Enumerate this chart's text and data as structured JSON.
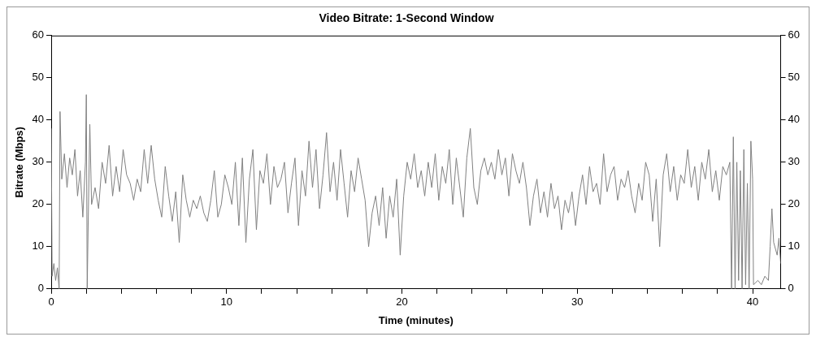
{
  "chart_data": {
    "type": "line",
    "title": "Video Bitrate: 1-Second Window",
    "xlabel": "Time (minutes)",
    "ylabel": "Bitrate (Mbps)",
    "grid": false,
    "legend": false,
    "marker": "none",
    "line_style": "solid",
    "xlim": [
      0,
      41.6
    ],
    "xticks": [
      0,
      {
        "value": 2,
        "label": null
      },
      {
        "value": 4,
        "label": null
      },
      {
        "value": 6,
        "label": null
      },
      {
        "value": 8,
        "label": null
      },
      10,
      {
        "value": 12,
        "label": null
      },
      {
        "value": 14,
        "label": null
      },
      {
        "value": 16,
        "label": null
      },
      {
        "value": 18,
        "label": null
      },
      20,
      {
        "value": 22,
        "label": null
      },
      {
        "value": 24,
        "label": null
      },
      {
        "value": 26,
        "label": null
      },
      {
        "value": 28,
        "label": null
      },
      30,
      {
        "value": 32,
        "label": null
      },
      {
        "value": 34,
        "label": null
      },
      {
        "value": 36,
        "label": null
      },
      {
        "value": 38,
        "label": null
      },
      40
    ],
    "ylim": [
      0,
      60
    ],
    "yticks": [
      0,
      10,
      20,
      30,
      40,
      50,
      60
    ],
    "y2lim": [
      0,
      60
    ],
    "y2ticks": [
      0,
      10,
      20,
      30,
      40,
      50,
      60
    ],
    "series": [
      {
        "color": "#808080",
        "x": [
          0,
          0.05,
          0.15,
          0.25,
          0.35,
          0.45,
          0.5,
          0.6,
          0.75,
          0.9,
          1.05,
          1.2,
          1.35,
          1.5,
          1.65,
          1.8,
          1.95,
          2.0,
          2.05,
          2.1,
          2.2,
          2.3,
          2.5,
          2.7,
          2.9,
          3.1,
          3.3,
          3.5,
          3.7,
          3.9,
          4.1,
          4.3,
          4.5,
          4.7,
          4.9,
          5.1,
          5.3,
          5.5,
          5.7,
          5.9,
          6.1,
          6.3,
          6.5,
          6.7,
          6.9,
          7.1,
          7.3,
          7.5,
          7.7,
          7.9,
          8.1,
          8.3,
          8.5,
          8.7,
          8.9,
          9.1,
          9.3,
          9.5,
          9.7,
          9.9,
          10.1,
          10.3,
          10.5,
          10.7,
          10.9,
          11.1,
          11.3,
          11.5,
          11.7,
          11.9,
          12.1,
          12.3,
          12.5,
          12.7,
          12.9,
          13.1,
          13.3,
          13.5,
          13.7,
          13.9,
          14.1,
          14.3,
          14.5,
          14.7,
          14.9,
          15.1,
          15.3,
          15.5,
          15.7,
          15.9,
          16.1,
          16.3,
          16.5,
          16.7,
          16.9,
          17.1,
          17.3,
          17.5,
          17.7,
          17.9,
          18.1,
          18.3,
          18.5,
          18.7,
          18.9,
          19.1,
          19.3,
          19.5,
          19.7,
          19.9,
          20.1,
          20.3,
          20.5,
          20.7,
          20.9,
          21.1,
          21.3,
          21.5,
          21.7,
          21.9,
          22.1,
          22.3,
          22.5,
          22.7,
          22.9,
          23.1,
          23.3,
          23.5,
          23.7,
          23.9,
          24.1,
          24.3,
          24.5,
          24.7,
          24.9,
          25.1,
          25.3,
          25.5,
          25.7,
          25.9,
          26.1,
          26.3,
          26.5,
          26.7,
          26.9,
          27.1,
          27.3,
          27.5,
          27.7,
          27.9,
          28.1,
          28.3,
          28.5,
          28.7,
          28.9,
          29.1,
          29.3,
          29.5,
          29.7,
          29.9,
          30.1,
          30.3,
          30.5,
          30.7,
          30.9,
          31.1,
          31.3,
          31.5,
          31.7,
          31.9,
          32.1,
          32.3,
          32.5,
          32.7,
          32.9,
          33.1,
          33.3,
          33.5,
          33.7,
          33.9,
          34.1,
          34.3,
          34.5,
          34.7,
          34.9,
          35.1,
          35.3,
          35.5,
          35.7,
          35.9,
          36.1,
          36.3,
          36.5,
          36.7,
          36.9,
          37.1,
          37.3,
          37.5,
          37.7,
          37.9,
          38.1,
          38.3,
          38.5,
          38.7,
          38.8,
          38.9,
          39.0,
          39.1,
          39.2,
          39.3,
          39.4,
          39.5,
          39.6,
          39.7,
          39.8,
          39.9,
          40.0,
          40.05,
          40.3,
          40.5,
          40.7,
          40.9,
          41.0,
          41.1,
          41.2,
          41.4,
          41.5,
          41.6
        ],
        "values": [
          38,
          3,
          6,
          2,
          5,
          0,
          42,
          26,
          32,
          24,
          31,
          27,
          33,
          22,
          28,
          17,
          30,
          46,
          0,
          14,
          39,
          20,
          24,
          19,
          30,
          25,
          34,
          22,
          29,
          23,
          33,
          27,
          25,
          21,
          26,
          23,
          33,
          25,
          34,
          26,
          21,
          17,
          29,
          22,
          16,
          23,
          11,
          27,
          21,
          17,
          21,
          19,
          22,
          18,
          16,
          21,
          28,
          17,
          20,
          27,
          24,
          20,
          30,
          15,
          31,
          11,
          26,
          33,
          14,
          28,
          25,
          32,
          20,
          29,
          24,
          26,
          30,
          18,
          25,
          31,
          15,
          28,
          22,
          35,
          24,
          33,
          19,
          27,
          37,
          23,
          30,
          21,
          33,
          25,
          17,
          28,
          23,
          31,
          26,
          21,
          10,
          18,
          22,
          15,
          24,
          12,
          22,
          17,
          26,
          8,
          22,
          30,
          26,
          32,
          24,
          28,
          22,
          30,
          24,
          32,
          21,
          29,
          25,
          33,
          20,
          31,
          24,
          17,
          31,
          38,
          24,
          20,
          28,
          31,
          27,
          30,
          26,
          33,
          27,
          31,
          22,
          32,
          28,
          25,
          30,
          24,
          15,
          22,
          26,
          18,
          23,
          17,
          25,
          19,
          22,
          14,
          21,
          18,
          23,
          15,
          22,
          27,
          20,
          29,
          23,
          25,
          20,
          32,
          23,
          27,
          29,
          21,
          26,
          24,
          28,
          22,
          18,
          25,
          21,
          30,
          27,
          16,
          26,
          10,
          27,
          32,
          23,
          29,
          21,
          27,
          25,
          33,
          24,
          29,
          21,
          30,
          26,
          33,
          23,
          28,
          21,
          29,
          27,
          30,
          0,
          36,
          0,
          30,
          2,
          28,
          0,
          33,
          1,
          25,
          0,
          35,
          26,
          1,
          2,
          1,
          3,
          2,
          10,
          19,
          11,
          8,
          12,
          6
        ]
      }
    ]
  }
}
